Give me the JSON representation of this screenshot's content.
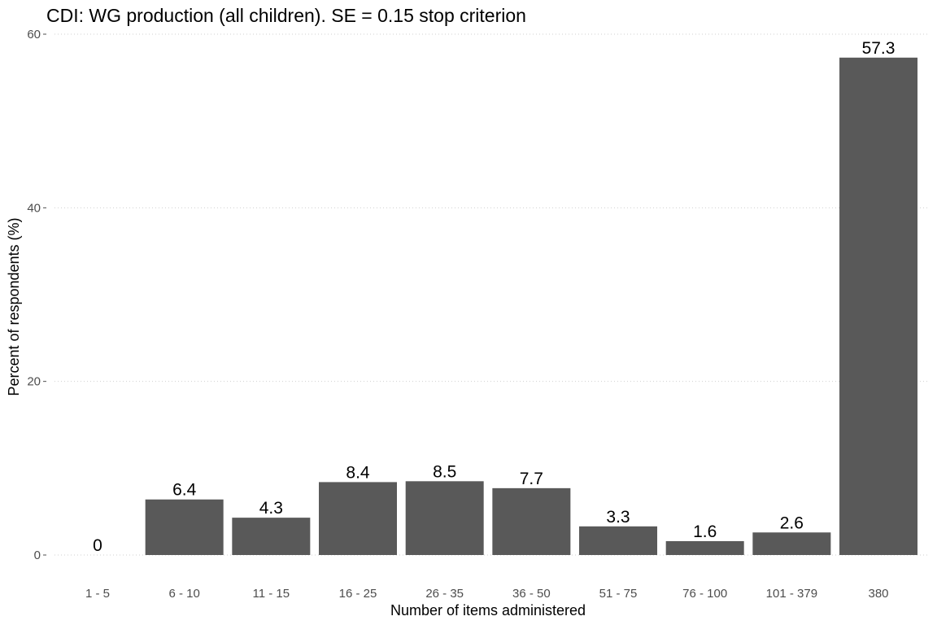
{
  "chart_data": {
    "type": "bar",
    "title": "CDI: WG production (all children). SE = 0.15 stop criterion",
    "xlabel": "Number of items administered",
    "ylabel": "Percent of respondents (%)",
    "categories": [
      "1 - 5",
      "6 - 10",
      "11 - 15",
      "16 - 25",
      "26 - 35",
      "36 - 50",
      "51 - 75",
      "76 - 100",
      "101 - 379",
      "380"
    ],
    "values": [
      0,
      6.4,
      4.3,
      8.4,
      8.5,
      7.7,
      3.3,
      1.6,
      2.6,
      57.3
    ],
    "value_labels": [
      "0",
      "6.4",
      "4.3",
      "8.4",
      "8.5",
      "7.7",
      "3.3",
      "1.6",
      "2.6",
      "57.3"
    ],
    "y_ticks": [
      0,
      20,
      40,
      60
    ],
    "y_tick_labels": [
      "0",
      "20",
      "40",
      "60"
    ],
    "ylim": [
      0,
      60
    ],
    "grid": true,
    "legend": "none",
    "bar_color": "#595959",
    "grid_color": "#cfcfcf"
  }
}
